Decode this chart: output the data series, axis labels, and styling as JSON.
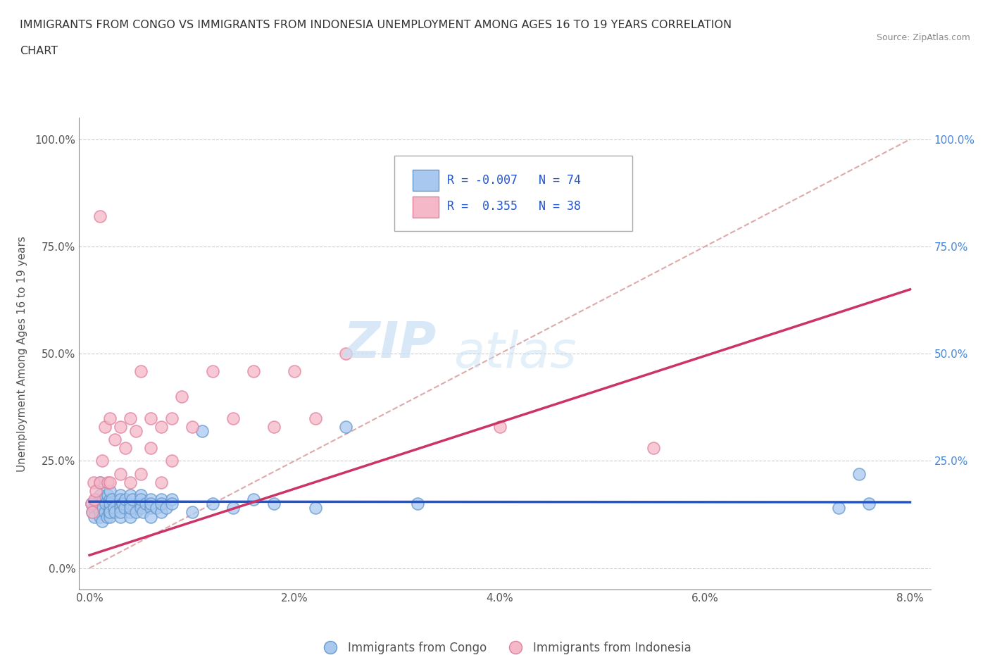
{
  "title_line1": "IMMIGRANTS FROM CONGO VS IMMIGRANTS FROM INDONESIA UNEMPLOYMENT AMONG AGES 16 TO 19 YEARS CORRELATION",
  "title_line2": "CHART",
  "source": "Source: ZipAtlas.com",
  "ylabel": "Unemployment Among Ages 16 to 19 years",
  "xlim": [
    0.0,
    0.08
  ],
  "ylim": [
    0.0,
    1.0
  ],
  "ytick_labels_left": [
    "",
    "",
    "",
    "",
    ""
  ],
  "ytick_values": [
    0.0,
    0.25,
    0.5,
    0.75,
    1.0
  ],
  "xtick_labels": [
    "0.0%",
    "2.0%",
    "4.0%",
    "6.0%",
    "8.0%"
  ],
  "xtick_values": [
    0.0,
    0.02,
    0.04,
    0.06,
    0.08
  ],
  "right_ytick_labels": [
    "100.0%",
    "75.0%",
    "50.0%",
    "25.0%"
  ],
  "right_ytick_values": [
    1.0,
    0.75,
    0.5,
    0.25
  ],
  "congo_color": "#a8c8f0",
  "congo_edge_color": "#6699cc",
  "indonesia_color": "#f5b8c8",
  "indonesia_edge_color": "#e080a0",
  "trendline_congo_color": "#2255cc",
  "trendline_indonesia_color": "#cc3366",
  "trendline_diagonal_color": "#ddaaaa",
  "R_congo": -0.007,
  "N_congo": 74,
  "R_indonesia": 0.355,
  "N_indonesia": 38,
  "watermark_zip": "ZIP",
  "watermark_atlas": "atlas",
  "legend_entries": [
    "Immigrants from Congo",
    "Immigrants from Indonesia"
  ],
  "congo_x": [
    0.0002,
    0.0003,
    0.0004,
    0.0005,
    0.0006,
    0.0007,
    0.0008,
    0.001,
    0.001,
    0.001,
    0.001,
    0.001,
    0.0012,
    0.0013,
    0.0014,
    0.0015,
    0.0016,
    0.0017,
    0.0018,
    0.0019,
    0.002,
    0.002,
    0.002,
    0.002,
    0.002,
    0.002,
    0.0022,
    0.0024,
    0.0025,
    0.003,
    0.003,
    0.003,
    0.003,
    0.003,
    0.003,
    0.0032,
    0.0034,
    0.0035,
    0.004,
    0.004,
    0.004,
    0.004,
    0.004,
    0.0042,
    0.0045,
    0.005,
    0.005,
    0.005,
    0.005,
    0.0052,
    0.0055,
    0.006,
    0.006,
    0.006,
    0.006,
    0.0065,
    0.007,
    0.007,
    0.007,
    0.0075,
    0.008,
    0.008,
    0.01,
    0.011,
    0.012,
    0.014,
    0.016,
    0.018,
    0.022,
    0.025,
    0.032,
    0.073,
    0.075,
    0.076
  ],
  "congo_y": [
    0.15,
    0.13,
    0.14,
    0.12,
    0.16,
    0.15,
    0.14,
    0.17,
    0.2,
    0.13,
    0.15,
    0.12,
    0.11,
    0.14,
    0.16,
    0.13,
    0.15,
    0.12,
    0.17,
    0.13,
    0.14,
    0.16,
    0.12,
    0.15,
    0.18,
    0.13,
    0.16,
    0.14,
    0.13,
    0.15,
    0.17,
    0.14,
    0.12,
    0.16,
    0.13,
    0.15,
    0.14,
    0.16,
    0.13,
    0.15,
    0.17,
    0.12,
    0.14,
    0.16,
    0.13,
    0.15,
    0.17,
    0.14,
    0.16,
    0.13,
    0.15,
    0.14,
    0.16,
    0.12,
    0.15,
    0.14,
    0.16,
    0.13,
    0.15,
    0.14,
    0.16,
    0.15,
    0.13,
    0.32,
    0.15,
    0.14,
    0.16,
    0.15,
    0.14,
    0.33,
    0.15,
    0.14,
    0.22,
    0.15
  ],
  "indonesia_x": [
    0.0002,
    0.0003,
    0.0004,
    0.0005,
    0.0006,
    0.001,
    0.001,
    0.0012,
    0.0015,
    0.0018,
    0.002,
    0.002,
    0.0025,
    0.003,
    0.003,
    0.0035,
    0.004,
    0.004,
    0.0045,
    0.005,
    0.005,
    0.006,
    0.006,
    0.007,
    0.007,
    0.008,
    0.008,
    0.009,
    0.01,
    0.012,
    0.014,
    0.016,
    0.018,
    0.02,
    0.022,
    0.025,
    0.04,
    0.055
  ],
  "indonesia_y": [
    0.15,
    0.13,
    0.2,
    0.16,
    0.18,
    0.82,
    0.2,
    0.25,
    0.33,
    0.2,
    0.35,
    0.2,
    0.3,
    0.33,
    0.22,
    0.28,
    0.35,
    0.2,
    0.32,
    0.46,
    0.22,
    0.28,
    0.35,
    0.33,
    0.2,
    0.35,
    0.25,
    0.4,
    0.33,
    0.46,
    0.35,
    0.46,
    0.33,
    0.46,
    0.35,
    0.5,
    0.33,
    0.28
  ]
}
